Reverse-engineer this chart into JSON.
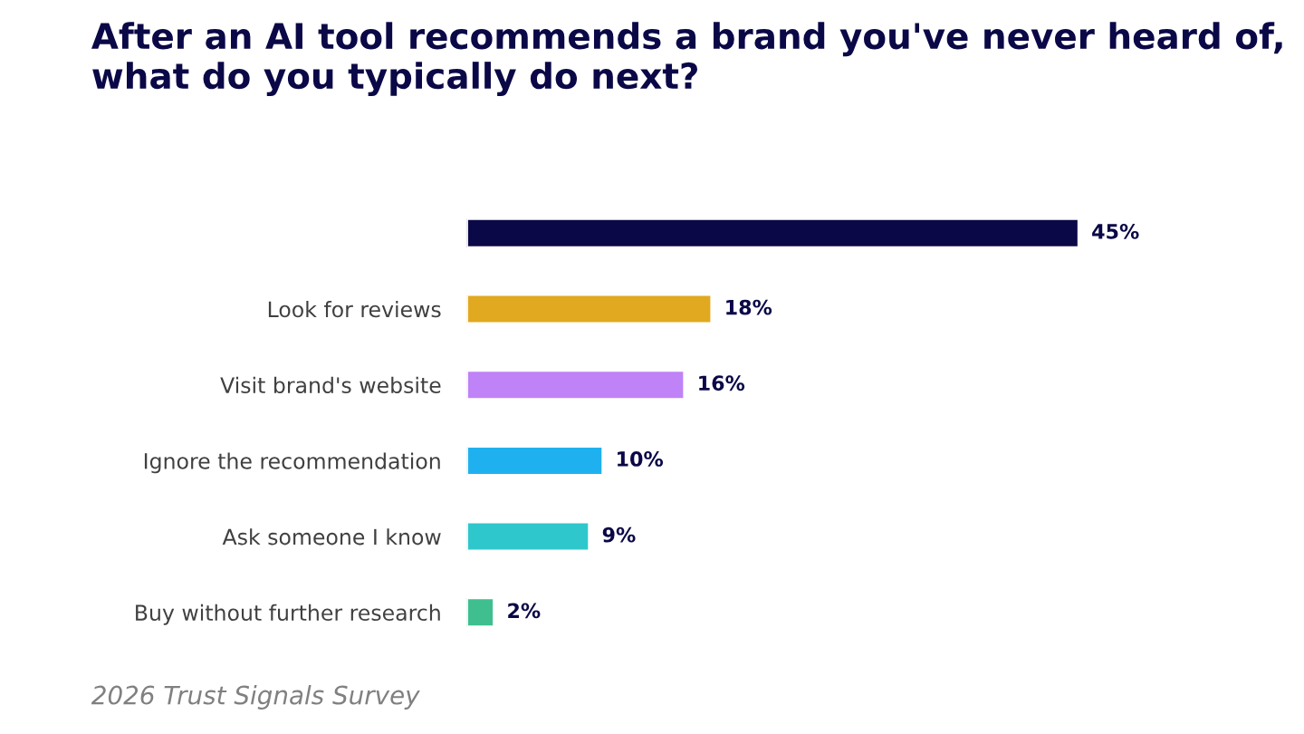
{
  "chart_data": {
    "type": "bar",
    "orientation": "horizontal",
    "title": "After an AI tool recommends a brand you've never heard of, what do you typically do next?",
    "categories": [
      null,
      "Look for reviews",
      "Visit brand's website",
      "Ignore the recommendation",
      "Ask someone I know",
      "Buy without further research"
    ],
    "values": [
      45,
      18,
      16,
      10,
      9,
      2
    ],
    "colors": [
      "#0b0847",
      "#e0a91f",
      "#bf82f7",
      "#1fb1ef",
      "#2ec7cc",
      "#3fbf8f"
    ],
    "value_labels": [
      "45%",
      "18%",
      "16%",
      "10%",
      "9%",
      "2%"
    ],
    "annotations": [
      "2026 Trust Signals Survey"
    ],
    "grid": false,
    "legend": false
  }
}
